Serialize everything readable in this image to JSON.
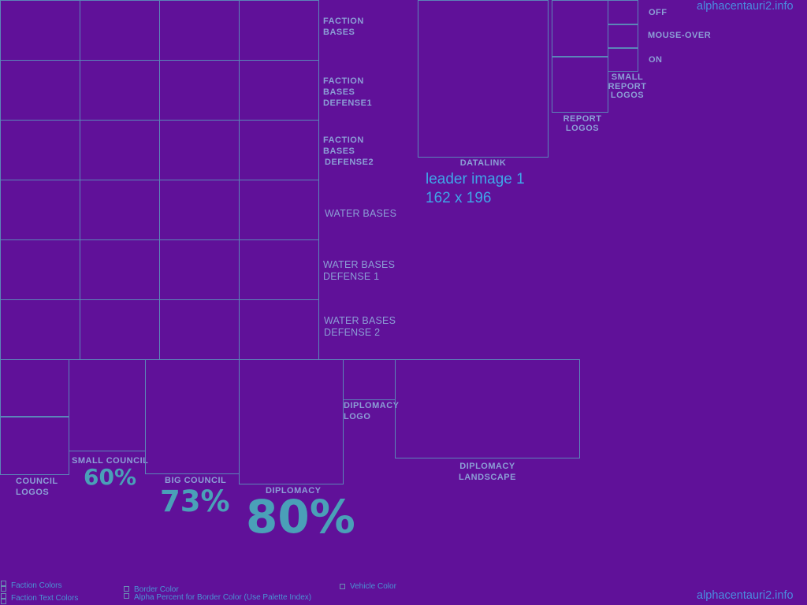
{
  "site": {
    "top": "alphacentauri2.info",
    "bottom": "alphacentauri2.info"
  },
  "grid_labels": {
    "faction_bases": [
      "FACTION",
      "BASES"
    ],
    "faction_bases_defense1": [
      "FACTION",
      "BASES",
      "DEFENSE1"
    ],
    "faction_bases_defense2": [
      "FACTION",
      "BASES",
      "DEFENSE2"
    ],
    "water_bases": "WATER BASES",
    "water_bases_defense1": [
      "WATER BASES",
      "DEFENSE 1"
    ],
    "water_bases_defense2": [
      "WATER BASES",
      "DEFENSE 2"
    ]
  },
  "top_right": {
    "datalink": "DATALINK",
    "leader_image": [
      "leader image 1",
      "162 x 196"
    ],
    "report_logos": [
      "REPORT",
      "LOGOS"
    ],
    "small_report_logos": [
      "SMALL",
      "REPORT",
      "LOGOS"
    ],
    "off": "OFF",
    "mouse_over": "MOUSE-OVER",
    "on": "ON"
  },
  "bottom": {
    "council_logos": [
      "COUNCIL",
      "LOGOS"
    ],
    "small_council": "SMALL COUNCIL",
    "small_council_pct": "60%",
    "big_council": "BIG COUNCIL",
    "big_council_pct": "73%",
    "diplomacy": "DIPLOMACY",
    "diplomacy_pct": "80%",
    "diplomacy_logo": [
      "DIPLOMACY",
      "LOGO"
    ],
    "diplomacy_landscape": [
      "DIPLOMACY",
      "LANDSCAPE"
    ]
  },
  "legend": {
    "faction_colors": "Faction Colors",
    "faction_text_colors": "Faction Text Colors",
    "border_color": "Border Color",
    "alpha_percent": "Alpha Percent for Border Color (Use Palette Index)",
    "vehicle_color": "Vehicle Color"
  }
}
